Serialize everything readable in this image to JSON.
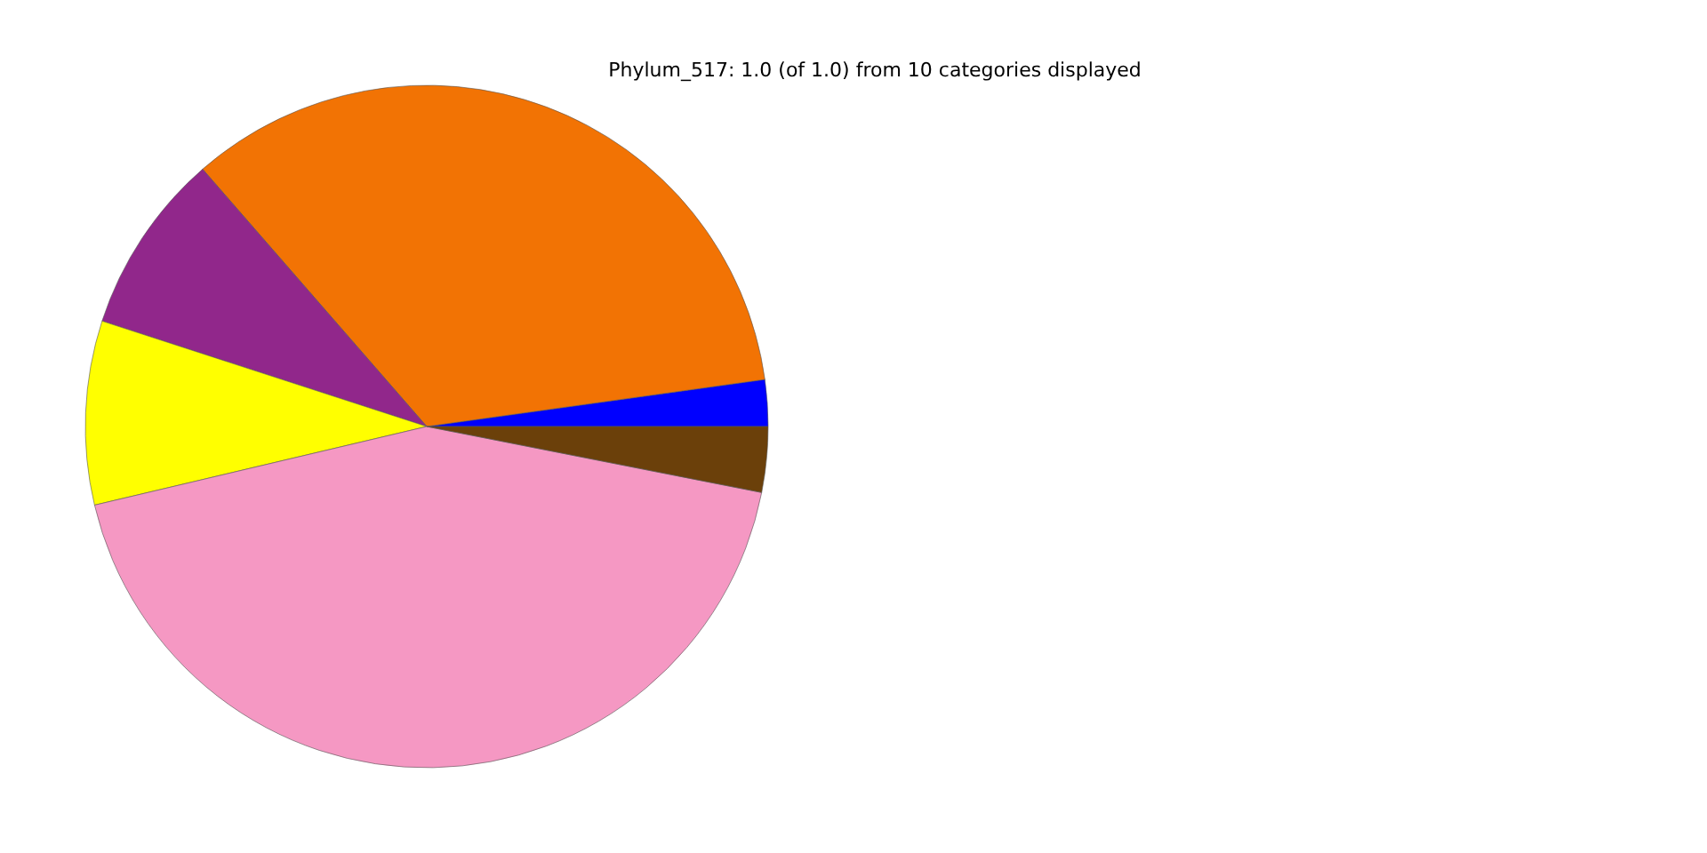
{
  "chart_data": {
    "type": "pie",
    "title": "Phylum_517: 1.0 (of 1.0) from 10 categories displayed",
    "categories": [
      null,
      null,
      null,
      null,
      null,
      null
    ],
    "values": [
      2.2,
      34.2,
      8.6,
      8.7,
      43.2,
      3.1
    ],
    "colors": [
      "#0000ff",
      "#f27304",
      "#91278b",
      "#ffff00",
      "#f598c3",
      "#6b400a"
    ]
  }
}
